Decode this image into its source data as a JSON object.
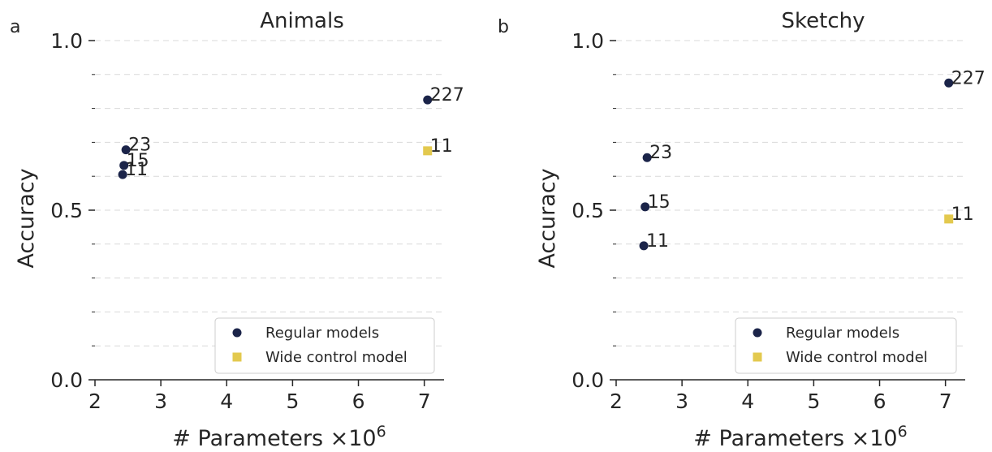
{
  "chart_data": [
    {
      "type": "scatter",
      "panel_letter": "a",
      "title": "Animals",
      "xlabel": "# Parameters",
      "xlabel_multiplier": "×10",
      "xlabel_exponent": "6",
      "ylabel": "Accuracy",
      "xlim": [
        2,
        7.3
      ],
      "ylim": [
        0,
        1.0
      ],
      "xticks": [
        2,
        3,
        4,
        5,
        6,
        7
      ],
      "yticks": [
        0.0,
        0.5,
        1.0
      ],
      "ytick_labels": [
        "0.0",
        "0.5",
        "1.0"
      ],
      "grid": "horizontal dashed",
      "legend_position": "lower-right",
      "series": [
        {
          "name": "Regular models",
          "marker": "circle",
          "color": "#1b2449",
          "points": [
            {
              "x": 2.42,
              "y": 0.605,
              "label": "11"
            },
            {
              "x": 2.44,
              "y": 0.632,
              "label": "15"
            },
            {
              "x": 2.47,
              "y": 0.678,
              "label": "23"
            },
            {
              "x": 7.05,
              "y": 0.825,
              "label": "227"
            }
          ]
        },
        {
          "name": "Wide control model",
          "marker": "square",
          "color": "#e3c94e",
          "points": [
            {
              "x": 7.05,
              "y": 0.675,
              "label": "11"
            }
          ]
        }
      ]
    },
    {
      "type": "scatter",
      "panel_letter": "b",
      "title": "Sketchy",
      "xlabel": "# Parameters",
      "xlabel_multiplier": "×10",
      "xlabel_exponent": "6",
      "ylabel": "Accuracy",
      "xlim": [
        2,
        7.3
      ],
      "ylim": [
        0,
        1.0
      ],
      "xticks": [
        2,
        3,
        4,
        5,
        6,
        7
      ],
      "yticks": [
        0.0,
        0.5,
        1.0
      ],
      "ytick_labels": [
        "0.0",
        "0.5",
        "1.0"
      ],
      "grid": "horizontal dashed",
      "legend_position": "lower-right",
      "series": [
        {
          "name": "Regular models",
          "marker": "circle",
          "color": "#1b2449",
          "points": [
            {
              "x": 2.42,
              "y": 0.395,
              "label": "11"
            },
            {
              "x": 2.44,
              "y": 0.51,
              "label": "15"
            },
            {
              "x": 2.47,
              "y": 0.655,
              "label": "23"
            },
            {
              "x": 7.05,
              "y": 0.875,
              "label": "227"
            }
          ]
        },
        {
          "name": "Wide control model",
          "marker": "square",
          "color": "#e3c94e",
          "points": [
            {
              "x": 7.05,
              "y": 0.474,
              "label": "11"
            }
          ]
        }
      ]
    }
  ]
}
